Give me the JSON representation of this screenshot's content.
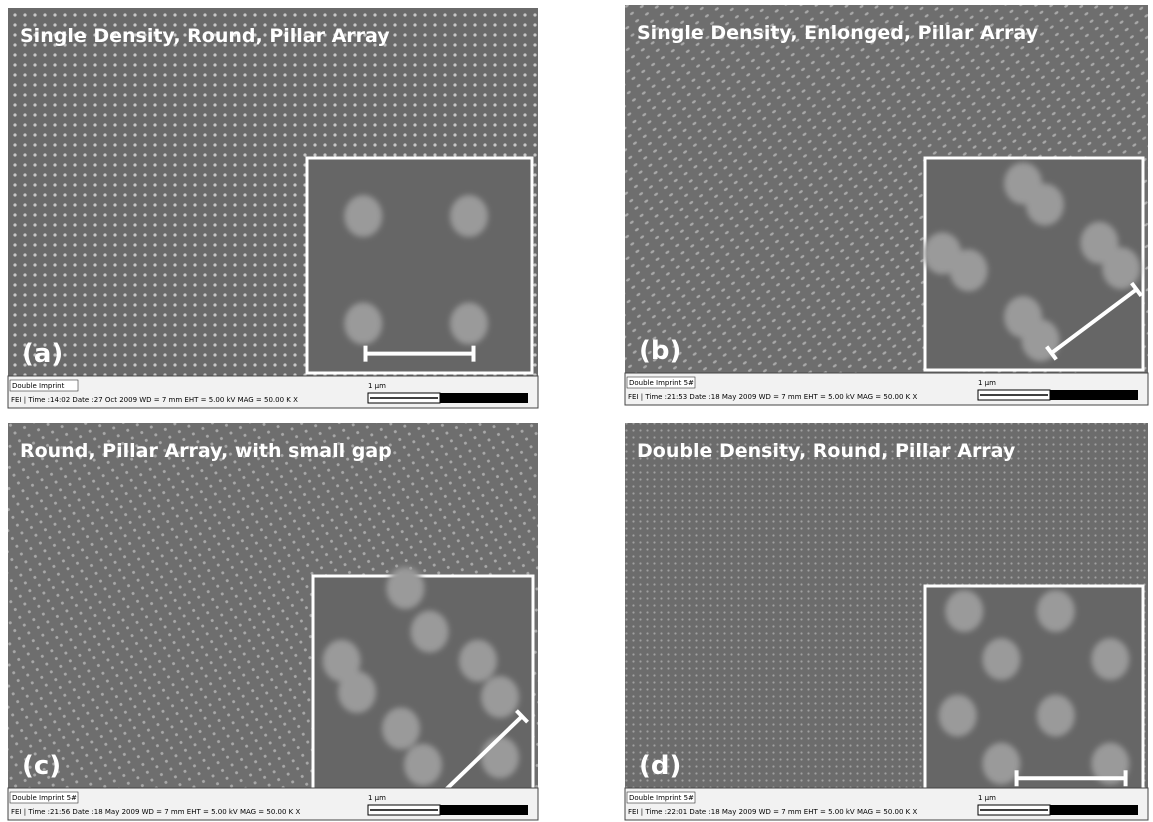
{
  "panels": [
    {
      "title": "Single Density, Round, Pillar Array",
      "label": "(a)",
      "detector": "Double Imprint",
      "info": "FEI | Time :14:02 Date :27 Oct 2009 WD = 7 mm EHT = 5.00 kV MAG = 50.00 K X",
      "scale": "1 µm"
    },
    {
      "title": "Single Density, Enlonged, Pillar Array",
      "label": "(b)",
      "detector": "Double Imprint 5#",
      "info": "FEI | Time :21:53 Date :18 May 2009 WD = 7 mm EHT = 5.00 kV MAG = 50.00 K X",
      "scale": "1 µm"
    },
    {
      "title": "Round, Pillar Array, with small gap",
      "label": "(c)",
      "detector": "Double Imprint 5#",
      "info": "FEI | Time :21:56 Date :18 May 2009 WD = 7 mm EHT = 5.00 kV MAG = 50.00 K X",
      "scale": "1 µm"
    },
    {
      "title": "Double Density, Round, Pillar Array",
      "label": "(d)",
      "detector": "Double Imprint 5#",
      "info": "FEI | Time :22:01 Date :18 May 2009 WD = 7 mm EHT = 5.00 kV MAG = 50.00 K X",
      "scale": "1 µm"
    }
  ]
}
